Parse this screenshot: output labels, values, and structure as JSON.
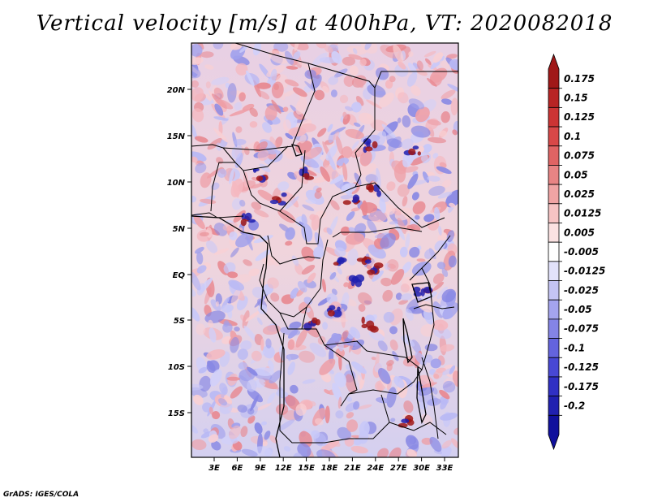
{
  "title": "Vertical velocity [m/s] at 400hPa, VT: 2020082018",
  "credit": "GrADS: IGES/COLA",
  "lat_ticks": [
    "20N",
    "15N",
    "10N",
    "5N",
    "EQ",
    "5S",
    "10S",
    "15S"
  ],
  "lon_ticks": [
    "3E",
    "6E",
    "9E",
    "12E",
    "15E",
    "18E",
    "21E",
    "24E",
    "27E",
    "30E",
    "33E"
  ],
  "colorbar": {
    "labels": [
      "0.175",
      "0.15",
      "0.125",
      "0.1",
      "0.075",
      "0.05",
      "0.025",
      "0.0125",
      "0.005",
      "-0.005",
      "-0.0125",
      "-0.025",
      "-0.05",
      "-0.075",
      "-0.1",
      "-0.125",
      "-0.175",
      "-0.2"
    ],
    "colors": [
      "#a01818",
      "#b82424",
      "#cc3434",
      "#d84848",
      "#e06464",
      "#e88484",
      "#f0a4a4",
      "#f6c4c4",
      "#fbe2e2",
      "#ffffff",
      "#e2e2fb",
      "#c4c4f4",
      "#a4a4ee",
      "#8484e6",
      "#6464de",
      "#4848d4",
      "#3030c4",
      "#2020b0",
      "#10109c"
    ]
  }
}
